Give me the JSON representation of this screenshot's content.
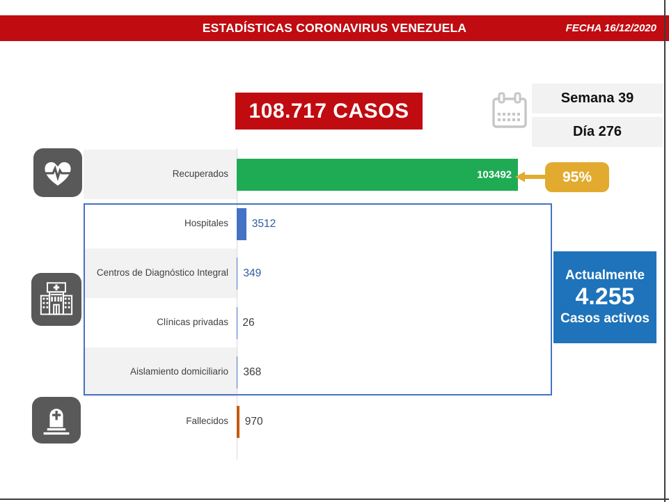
{
  "header": {
    "title": "ESTADÍSTICAS CORONAVIRUS VENEZUELA",
    "date": "FECHA 16/12/2020",
    "bar_color": "#c00b10"
  },
  "summary": {
    "total_cases": "108.717 CASOS",
    "week": "Semana 39",
    "day": "Día 276"
  },
  "recovered_callout": {
    "percent": "95%",
    "color": "#e2ab2f"
  },
  "active_cases_box": {
    "line1": "Actualmente",
    "value": "4.255",
    "line2": "Casos activos",
    "color": "#1e73ba"
  },
  "chart_data": {
    "type": "bar",
    "orientation": "horizontal",
    "categories": [
      "Recuperados",
      "Hospitales",
      "Centros de Diagnóstico Integral",
      "Clínicas privadas",
      "Aislamiento domiciliario",
      "Fallecidos"
    ],
    "values": [
      103492,
      3512,
      349,
      26,
      368,
      970
    ],
    "bar_colors": [
      "#1fab54",
      "#4472c4",
      "#4472c4",
      "#4472c4",
      "#4472c4",
      "#c55a11"
    ],
    "value_label_colors": [
      "#ffffff",
      "#2e5b9f",
      "#2e5b9f",
      "#3b3b3b",
      "#3b3b3b",
      "#3b3b3b"
    ],
    "value_label_inside": [
      true,
      false,
      false,
      false,
      false,
      false
    ],
    "row_shaded": [
      true,
      false,
      true,
      false,
      true,
      false
    ],
    "grouped_rows_boxed": [
      1,
      2,
      3,
      4
    ],
    "xmax": 116000,
    "xlabel": "",
    "ylabel": "",
    "grid": false,
    "legend": false
  },
  "colors": {
    "header_red": "#c00b10",
    "green_bar": "#1fab54",
    "blue_bar": "#4472c4",
    "orange_bar": "#c55a11",
    "yellow_badge": "#e2ab2f",
    "active_blue": "#1e73ba",
    "icon_gray": "#595959",
    "shade_gray": "#f2f2f2"
  }
}
